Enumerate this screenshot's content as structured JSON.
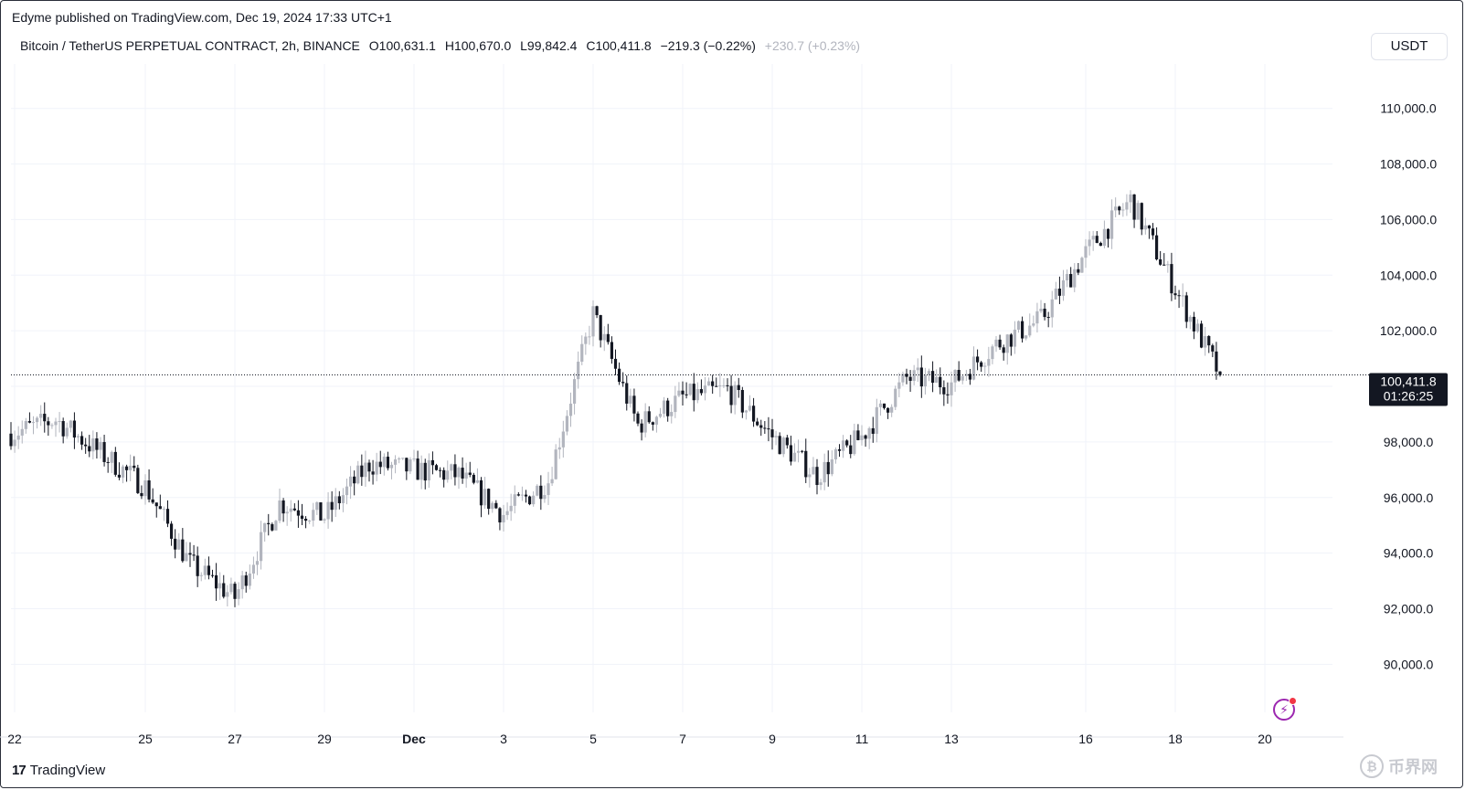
{
  "publisher": "Edyme published on TradingView.com, Dec 19, 2024 17:33 UTC+1",
  "legend": {
    "symbol": "Bitcoin / TetherUS PERPETUAL CONTRACT, 2h, BINANCE",
    "open": "O100,631.1",
    "high": "H100,670.0",
    "low": "L99,842.4",
    "close": "C100,411.8",
    "change": "−219.3 (−0.22%)",
    "extra_change": "+230.7 (+0.23%)"
  },
  "currency": "USDT",
  "price_label": {
    "price": "100,411.8",
    "countdown": "01:26:25"
  },
  "brand": "TradingView",
  "watermark": "币界网",
  "chart_data": {
    "type": "candlestick",
    "title": "",
    "xlabel": "",
    "ylabel": "",
    "ylim": [
      88600,
      111600
    ],
    "y_ticks": [
      "90,000.0",
      "92,000.0",
      "94,000.0",
      "96,000.0",
      "98,000.0",
      "100,000.0",
      "102,000.0",
      "104,000.0",
      "106,000.0",
      "108,000.0",
      "110,000.0"
    ],
    "x_ticks": [
      "22",
      "25",
      "27",
      "29",
      "Dec",
      "3",
      "5",
      "7",
      "9",
      "11",
      "13",
      "16",
      "18",
      "20"
    ],
    "grid": true,
    "last_price": 100411.8,
    "anchors": [
      {
        "day": "Nov 22",
        "price": 98300
      },
      {
        "day": "Nov 23",
        "price": 98800
      },
      {
        "day": "Nov 24",
        "price": 97600
      },
      {
        "day": "Nov 25",
        "price": 96400
      },
      {
        "day": "Nov 26",
        "price": 93600
      },
      {
        "day": "Nov 27",
        "price": 92400
      },
      {
        "day": "Nov 28",
        "price": 95800
      },
      {
        "day": "Nov 29",
        "price": 95300
      },
      {
        "day": "Nov 30",
        "price": 97200
      },
      {
        "day": "Dec 1",
        "price": 97000
      },
      {
        "day": "Dec 2",
        "price": 96800
      },
      {
        "day": "Dec 3",
        "price": 95400
      },
      {
        "day": "Dec 4",
        "price": 96600
      },
      {
        "day": "Dec 5",
        "price": 102600
      },
      {
        "day": "Dec 6",
        "price": 98600
      },
      {
        "day": "Dec 7",
        "price": 99600
      },
      {
        "day": "Dec 8",
        "price": 99900
      },
      {
        "day": "Dec 9",
        "price": 98200
      },
      {
        "day": "Dec 10",
        "price": 96800
      },
      {
        "day": "Dec 11",
        "price": 98200
      },
      {
        "day": "Dec 12",
        "price": 100300
      },
      {
        "day": "Dec 13",
        "price": 100100
      },
      {
        "day": "Dec 14",
        "price": 101500
      },
      {
        "day": "Dec 15",
        "price": 102400
      },
      {
        "day": "Dec 16",
        "price": 104800
      },
      {
        "day": "Dec 17",
        "price": 106700
      },
      {
        "day": "Dec 18",
        "price": 103500
      },
      {
        "day": "Dec 19",
        "price": 100400
      }
    ]
  }
}
